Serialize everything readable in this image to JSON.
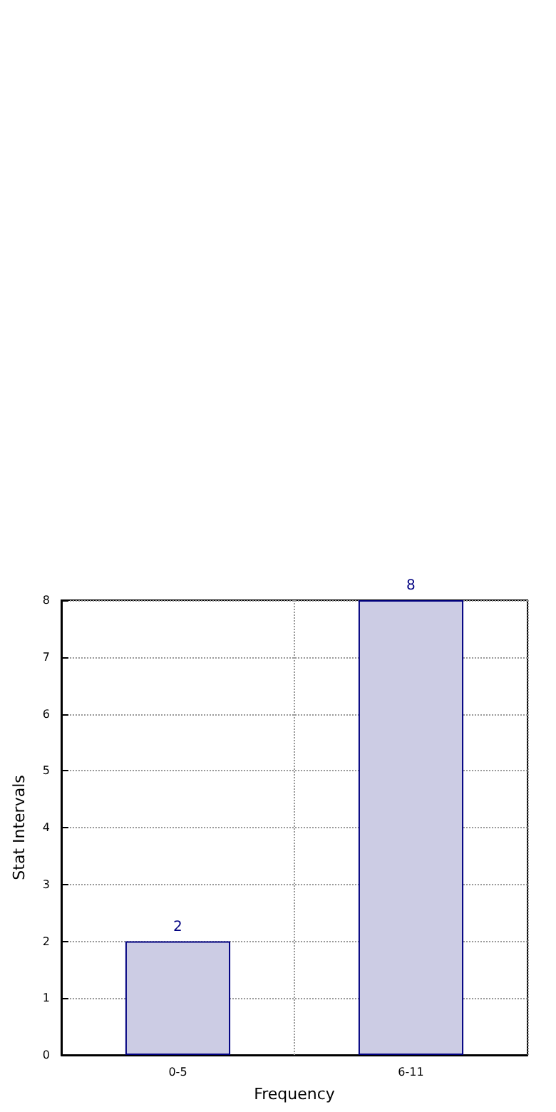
{
  "chart_data": {
    "type": "bar",
    "xlabel": "Frequency",
    "ylabel": "Stat Intervals",
    "categories": [
      "0-5",
      "6-11"
    ],
    "series": [
      {
        "color": "#cccce4",
        "values": [
          2,
          8
        ]
      }
    ],
    "ylim": [
      0,
      8
    ],
    "yticks": [
      0,
      1,
      2,
      3,
      4,
      5,
      6,
      7,
      8
    ],
    "grid": true,
    "data_labels": true
  }
}
